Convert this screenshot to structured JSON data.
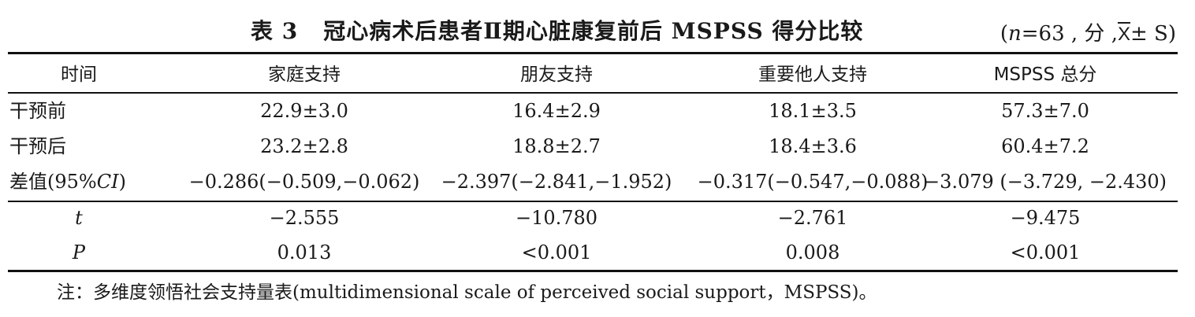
{
  "title": {
    "table_number": "表 3",
    "text": "冠心病术后患者Ⅱ期心脏康复前后 MSPSS 得分比较"
  },
  "stat_note": {
    "open": "(",
    "n_symbol": "n",
    "n_rest": "=63 , 分 ,",
    "xbar": "X",
    "rest": "± S)"
  },
  "table": {
    "headers": [
      "时间",
      "家庭支持",
      "朋友支持",
      "重要他人支持",
      "MSPSS 总分"
    ],
    "rows": [
      {
        "label": "干预前",
        "values": [
          "22.9±3.0",
          "16.4±2.9",
          "18.1±3.5",
          "57.3±7.0"
        ]
      },
      {
        "label": "干预后",
        "values": [
          "23.2±2.8",
          "18.8±2.7",
          "18.4±3.6",
          "60.4±7.2"
        ]
      },
      {
        "label_prefix": "差值(95%",
        "label_ci": "CI",
        "label_suffix": ")",
        "values": [
          "−0.286(−0.509,−0.062)",
          "−2.397(−2.841,−1.952)",
          "−0.317(−0.547,−0.088)",
          "−3.079 (−3.729, −2.430)"
        ]
      }
    ],
    "stats": [
      {
        "label": "t",
        "values": [
          "−2.555",
          "−10.780",
          "−2.761",
          "−9.475"
        ]
      },
      {
        "label": "P",
        "values": [
          "0.013",
          "<0.001",
          "0.008",
          "<0.001"
        ]
      }
    ]
  },
  "note": "注：多维度领悟社会支持量表(multidimensional scale of perceived social support，MSPSS)。"
}
